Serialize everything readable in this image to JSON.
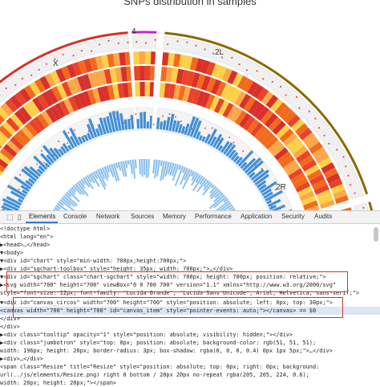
{
  "viz": {
    "title": "SNPs distribution in samples",
    "chromosomes": [
      {
        "label": "4",
        "color": "#cc22cc"
      },
      {
        "label": "2L",
        "color": "#8a6a00"
      },
      {
        "label": "X",
        "color": "#d9302c"
      },
      {
        "label": "2R",
        "color": "#8a6a00"
      }
    ],
    "colors": {
      "heat_dark": "#d9302c",
      "heat_mid": "#f26b1d",
      "heat_light": "#fdd049",
      "histogram": "#3f8fd6",
      "histogram_inner": "#8ec1ec",
      "dots": "#e05252"
    }
  },
  "devtools": {
    "tabs": [
      "Elements",
      "Console",
      "Network",
      "Sources",
      "Memory",
      "Performance",
      "Application",
      "Security",
      "Audits"
    ],
    "active_tab": "Elements",
    "lines": [
      "<!doctype html>",
      "<html lang=\"en\">",
      "  ▶<head>…</head>",
      "  ▼<body>",
      "    ▼<div id=\"chart\" style=\"min-width: 700px;height:700px;\">",
      "      ▶<div id=\"sgchart-toolbox\" style=\"height: 35px; width: 700px;\">…</div>",
      "      ▼<div id=\"sgchart\" class=\"chart-sgchart\" style=\"width: 700px; height: 700px; position: relative;\">",
      "        ▶<svg width=\"700\" height=\"700\" viewBox=\"0 0 700 700\" version=\"1.1\" xmlns=\"http://www.w3.org/2000/svg\"",
      "        style=\"font-size: 12px; font-family: 'Lucida Grande', 'Lucida Sans Unicode', Arial, Helvetica, sans-serif;\">",
      "        ▼<div id=\"canvas_circos\" width=\"700\" height=\"700\" style=\"position: absolute; left: 0px; top: 30px;\">",
      "            <canvas width=\"700\" height=\"700\" id=\"canvas_item\" style=\"pointer-events: auto;\"></canvas> == $0",
      "          </div>",
      "        </div>",
      "      ▶<div class=\"tooltip\" opacity=\"1\" style=\"position: absolute; visibility: hidden;\"></div>",
      "      ▶<div class=\"jumbotron\" style=\"top: 0px; position: absolute; background-color: rgb(51, 51, 51);",
      "        width: 196px; height: 20px; border-radius: 3px; box-shadow: rgba(0, 0, 0, 0.4) 0px 1px 5px;\">…</div>",
      "      ▶<div>…</div>",
      "        <span class=\"Resize\" title=\"Resize\" style=\"position: absolute; top: 0px; right: 0px; background:",
      "        url(../js/elements/Resize.png) right 0 bottom / 20px 20px no-repeat rgba(205, 205, 224, 0.6);",
      "        width: 20px; height: 20px;\"></span>"
    ]
  }
}
